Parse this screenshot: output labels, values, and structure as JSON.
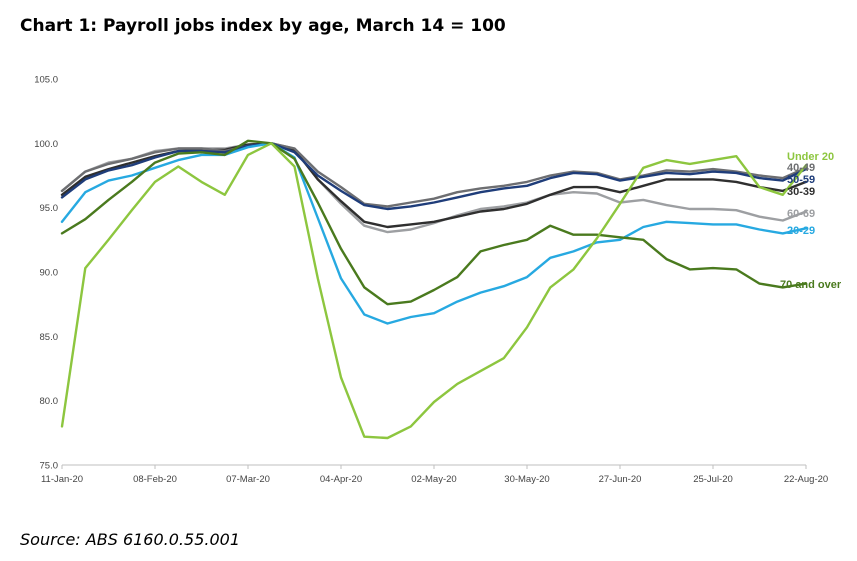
{
  "title": "Chart 1: Payroll jobs index by age, March 14 = 100",
  "source": "Source: ABS 6160.0.55.001",
  "chart_data": {
    "type": "line",
    "title": "Chart 1: Payroll jobs index by age, March 14 = 100",
    "xlabel": "",
    "ylabel": "",
    "ylim": [
      75,
      105
    ],
    "yticks": [
      "105.0",
      "100.0",
      "95.0",
      "90.0",
      "85.0",
      "80.0",
      "75.0"
    ],
    "x_tick_labels": [
      "11-Jan-20",
      "08-Feb-20",
      "07-Mar-20",
      "04-Apr-20",
      "02-May-20",
      "30-May-20",
      "27-Jun-20",
      "25-Jul-20",
      "22-Aug-20"
    ],
    "x": [
      "11-Jan-20",
      "18-Jan-20",
      "25-Jan-20",
      "01-Feb-20",
      "08-Feb-20",
      "15-Feb-20",
      "22-Feb-20",
      "29-Feb-20",
      "07-Mar-20",
      "14-Mar-20",
      "21-Mar-20",
      "28-Mar-20",
      "04-Apr-20",
      "11-Apr-20",
      "18-Apr-20",
      "25-Apr-20",
      "02-May-20",
      "09-May-20",
      "16-May-20",
      "23-May-20",
      "30-May-20",
      "06-Jun-20",
      "13-Jun-20",
      "20-Jun-20",
      "27-Jun-20",
      "04-Jul-20",
      "11-Jul-20",
      "18-Jul-20",
      "25-Jul-20",
      "01-Aug-20",
      "08-Aug-20",
      "15-Aug-20",
      "22-Aug-20"
    ],
    "grid": false,
    "series": [
      {
        "name": "Under 20",
        "color": "#8dc63f",
        "values": [
          78.0,
          90.3,
          92.5,
          94.8,
          97.0,
          98.2,
          97.0,
          96.0,
          99.1,
          100.0,
          98.2,
          89.5,
          81.8,
          77.2,
          77.1,
          78.0,
          79.9,
          81.3,
          82.3,
          83.3,
          85.7,
          88.8,
          90.2,
          92.6,
          95.3,
          98.1,
          98.7,
          98.4,
          98.7,
          99.0,
          96.6,
          96.0,
          98.3
        ]
      },
      {
        "name": "40-49",
        "color": "#6d6e71",
        "values": [
          96.3,
          97.8,
          98.4,
          98.8,
          99.3,
          99.6,
          99.6,
          99.4,
          99.8,
          100.0,
          99.6,
          97.8,
          96.6,
          95.3,
          95.1,
          95.4,
          95.7,
          96.2,
          96.5,
          96.7,
          97.0,
          97.5,
          97.8,
          97.7,
          97.2,
          97.5,
          97.9,
          97.8,
          98.0,
          97.8,
          97.5,
          97.3,
          98.1
        ]
      },
      {
        "name": "50-59",
        "color": "#1f3d7a",
        "values": [
          95.8,
          97.2,
          97.9,
          98.3,
          98.9,
          99.4,
          99.4,
          99.3,
          99.8,
          100.0,
          99.3,
          97.5,
          96.3,
          95.2,
          94.9,
          95.1,
          95.4,
          95.8,
          96.2,
          96.5,
          96.7,
          97.3,
          97.7,
          97.6,
          97.1,
          97.4,
          97.7,
          97.6,
          97.8,
          97.7,
          97.3,
          97.1,
          98.0
        ]
      },
      {
        "name": "30-39",
        "color": "#2f2f2f",
        "values": [
          96.0,
          97.4,
          98.0,
          98.5,
          99.0,
          99.4,
          99.5,
          99.5,
          99.9,
          100.0,
          99.5,
          97.2,
          95.5,
          93.9,
          93.5,
          93.7,
          93.9,
          94.3,
          94.7,
          94.9,
          95.3,
          96.0,
          96.6,
          96.6,
          96.2,
          96.7,
          97.2,
          97.2,
          97.2,
          97.0,
          96.6,
          96.3,
          97.0
        ]
      },
      {
        "name": "60-69",
        "color": "#9d9fa2",
        "values": [
          96.3,
          97.8,
          98.5,
          98.8,
          99.4,
          99.6,
          99.6,
          99.6,
          99.9,
          100.0,
          99.6,
          97.2,
          95.3,
          93.6,
          93.1,
          93.3,
          93.8,
          94.4,
          94.9,
          95.1,
          95.4,
          96.0,
          96.2,
          96.1,
          95.4,
          95.6,
          95.2,
          94.9,
          94.9,
          94.8,
          94.3,
          94.0,
          94.7
        ]
      },
      {
        "name": "20-29",
        "color": "#27a9e1",
        "values": [
          93.9,
          96.2,
          97.1,
          97.5,
          98.1,
          98.7,
          99.1,
          99.1,
          99.7,
          100.0,
          98.9,
          94.2,
          89.5,
          86.7,
          86.0,
          86.5,
          86.8,
          87.7,
          88.4,
          88.9,
          89.6,
          91.1,
          91.6,
          92.3,
          92.5,
          93.5,
          93.9,
          93.8,
          93.7,
          93.7,
          93.3,
          93.0,
          93.4
        ]
      },
      {
        "name": "70 and over",
        "color": "#4a7a1e",
        "values": [
          93.0,
          94.1,
          95.6,
          97.0,
          98.5,
          99.2,
          99.3,
          99.1,
          100.2,
          100.0,
          98.8,
          95.4,
          91.8,
          88.8,
          87.5,
          87.7,
          88.6,
          89.6,
          91.6,
          92.1,
          92.5,
          93.6,
          92.9,
          92.9,
          92.7,
          92.5,
          91.0,
          90.2,
          90.3,
          90.2,
          89.1,
          88.8,
          89.1
        ]
      }
    ]
  }
}
